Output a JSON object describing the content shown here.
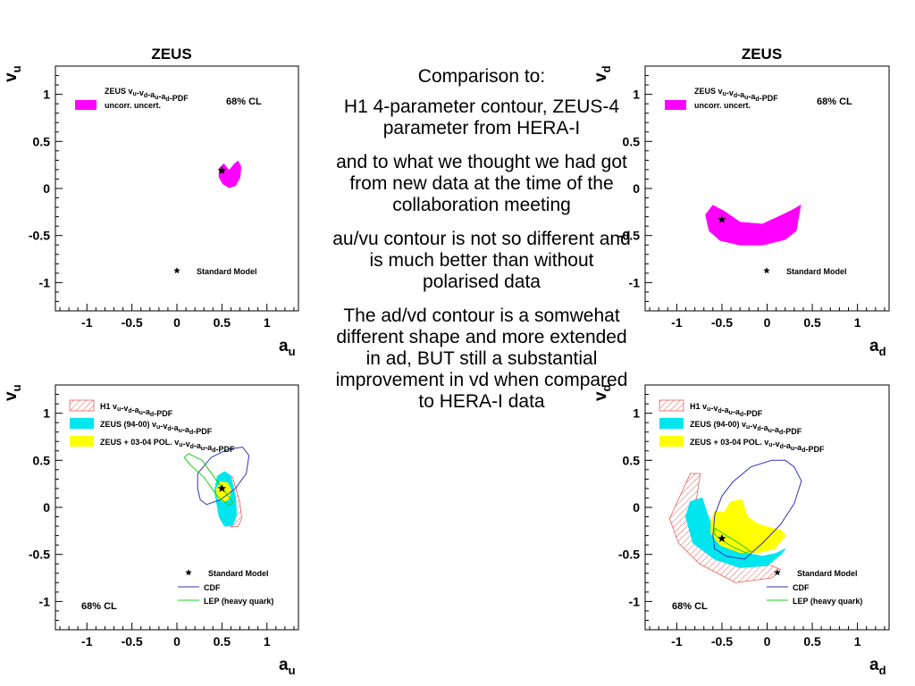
{
  "charts": [
    {
      "title": "ZEUS",
      "xlabel_base": "a",
      "xlabel_sub": "u",
      "ylabel_base": "v",
      "ylabel_sub": "u",
      "xticks": [
        "-1",
        "-0.5",
        "0",
        "0.5",
        "1"
      ],
      "yticks": [
        "1",
        "0.5",
        "0",
        "-0.5",
        "-1"
      ],
      "cl_label": "68% CL",
      "legend": [
        "ZEUS vu-vd-au-ad-PDF",
        "uncorr. uncert."
      ],
      "sm_label": "Standard Model"
    },
    {
      "title": "ZEUS",
      "xlabel_base": "a",
      "xlabel_sub": "d",
      "ylabel_base": "v",
      "ylabel_sub": "d",
      "xticks": [
        "-1",
        "-0.5",
        "0",
        "0.5",
        "1"
      ],
      "yticks": [
        "1",
        "0.5",
        "0",
        "-0.5",
        "-1"
      ],
      "cl_label": "68% CL",
      "legend": [
        "ZEUS vu-vd-au-ad-PDF",
        "uncorr. uncert."
      ],
      "sm_label": "Standard Model"
    },
    {
      "title": "",
      "xlabel_base": "a",
      "xlabel_sub": "u",
      "ylabel_base": "v",
      "ylabel_sub": "u",
      "xticks": [
        "-1",
        "-0.5",
        "0",
        "0.5",
        "1"
      ],
      "yticks": [
        "1",
        "0.5",
        "0",
        "-0.5",
        "-1"
      ],
      "cl_label": "68% CL",
      "legend": [
        "H1 vu-vd-au-ad-PDF",
        "ZEUS (94-00) vu-vd-au-ad-PDF",
        "ZEUS + 03-04 POL. vu-vd-au-ad-PDF"
      ],
      "sm_label": "Standard Model",
      "line_legend": [
        "CDF",
        "LEP (heavy quark)"
      ]
    },
    {
      "title": "",
      "xlabel_base": "a",
      "xlabel_sub": "d",
      "ylabel_base": "v",
      "ylabel_sub": "d",
      "xticks": [
        "-1",
        "-0.5",
        "0",
        "0.5",
        "1"
      ],
      "yticks": [
        "1",
        "0.5",
        "0",
        "-0.5",
        "-1"
      ],
      "cl_label": "68% CL",
      "legend": [
        "H1 vu-vd-au-ad-PDF",
        "ZEUS (94-00) vu-vd-au-ad-PDF",
        "ZEUS + 03-04 POL. vu-vd-au-ad-PDF"
      ],
      "sm_label": "Standard Model",
      "line_legend": [
        "CDF",
        "LEP (heavy quark)"
      ]
    }
  ],
  "chart_data": [
    {
      "type": "scatter",
      "title": "ZEUS",
      "xlim": [
        -1.35,
        1.35
      ],
      "ylim": [
        -1.3,
        1.3
      ],
      "standard_model": [
        0.5,
        0.19
      ],
      "contours": [
        {
          "name": "ZEUS vu-vd-au-ad-PDF uncorr. uncert.",
          "color": "#ff00ff",
          "style": "fill",
          "points": [
            [
              0.47,
              0.21
            ],
            [
              0.52,
              0.26
            ],
            [
              0.58,
              0.19
            ],
            [
              0.64,
              0.26
            ],
            [
              0.68,
              0.29
            ],
            [
              0.71,
              0.23
            ],
            [
              0.7,
              0.12
            ],
            [
              0.65,
              0.03
            ],
            [
              0.58,
              0.01
            ],
            [
              0.51,
              0.05
            ],
            [
              0.47,
              0.12
            ]
          ]
        }
      ]
    },
    {
      "type": "scatter",
      "title": "ZEUS",
      "xlim": [
        -1.35,
        1.35
      ],
      "ylim": [
        -1.3,
        1.3
      ],
      "standard_model": [
        -0.5,
        -0.33
      ],
      "contours": [
        {
          "name": "ZEUS vu-vd-au-ad-PDF uncorr. uncert.",
          "color": "#ff00ff",
          "style": "fill",
          "points": [
            [
              -0.68,
              -0.28
            ],
            [
              -0.6,
              -0.18
            ],
            [
              -0.48,
              -0.24
            ],
            [
              -0.3,
              -0.36
            ],
            [
              -0.05,
              -0.38
            ],
            [
              0.15,
              -0.29
            ],
            [
              0.28,
              -0.23
            ],
            [
              0.37,
              -0.18
            ],
            [
              0.32,
              -0.45
            ],
            [
              0.2,
              -0.54
            ],
            [
              -0.05,
              -0.6
            ],
            [
              -0.3,
              -0.6
            ],
            [
              -0.52,
              -0.55
            ],
            [
              -0.64,
              -0.45
            ]
          ]
        }
      ]
    },
    {
      "type": "scatter",
      "title": "",
      "xlim": [
        -1.35,
        1.35
      ],
      "ylim": [
        -1.3,
        1.3
      ],
      "standard_model": [
        0.5,
        0.2
      ],
      "contours": [
        {
          "name": "H1 vu-vd-au-ad-PDF",
          "color": "#e03030",
          "style": "hatch",
          "points": [
            [
              0.47,
              0.1
            ],
            [
              0.52,
              0.37
            ],
            [
              0.62,
              0.32
            ],
            [
              0.7,
              0.05
            ],
            [
              0.72,
              -0.12
            ],
            [
              0.68,
              -0.2
            ],
            [
              0.6,
              -0.21
            ],
            [
              0.52,
              -0.13
            ]
          ]
        },
        {
          "name": "ZEUS (94-00) vu-vd-au-ad-PDF",
          "color": "#00e5ee",
          "style": "fill",
          "points": [
            [
              0.42,
              0.17
            ],
            [
              0.45,
              0.33
            ],
            [
              0.53,
              0.38
            ],
            [
              0.6,
              0.33
            ],
            [
              0.65,
              0.1
            ],
            [
              0.66,
              -0.08
            ],
            [
              0.62,
              -0.19
            ],
            [
              0.53,
              -0.2
            ],
            [
              0.47,
              -0.1
            ]
          ]
        },
        {
          "name": "ZEUS + 03-04 POL. vu-vd-au-ad-PDF",
          "color": "#ffff00",
          "style": "fill",
          "points": [
            [
              0.44,
              0.2
            ],
            [
              0.48,
              0.27
            ],
            [
              0.56,
              0.26
            ],
            [
              0.6,
              0.19
            ],
            [
              0.58,
              0.09
            ],
            [
              0.52,
              0.06
            ],
            [
              0.45,
              0.1
            ]
          ]
        },
        {
          "name": "CDF",
          "color": "#3333bb",
          "style": "line",
          "points": [
            [
              0.23,
              0.36
            ],
            [
              0.38,
              0.53
            ],
            [
              0.57,
              0.62
            ],
            [
              0.73,
              0.64
            ],
            [
              0.8,
              0.55
            ],
            [
              0.77,
              0.36
            ],
            [
              0.65,
              0.2
            ],
            [
              0.48,
              0.08
            ],
            [
              0.33,
              0.03
            ],
            [
              0.26,
              0.08
            ],
            [
              0.23,
              0.2
            ]
          ]
        },
        {
          "name": "LEP (heavy quark)",
          "color": "#22cc22",
          "style": "line",
          "points": [
            [
              0.08,
              0.53
            ],
            [
              0.13,
              0.57
            ],
            [
              0.28,
              0.5
            ],
            [
              0.43,
              0.3
            ],
            [
              0.57,
              0.12
            ],
            [
              0.62,
              0.05
            ],
            [
              0.58,
              0.02
            ],
            [
              0.45,
              0.12
            ],
            [
              0.3,
              0.32
            ],
            [
              0.15,
              0.45
            ]
          ]
        }
      ]
    },
    {
      "type": "scatter",
      "title": "",
      "xlim": [
        -1.35,
        1.35
      ],
      "ylim": [
        -1.3,
        1.3
      ],
      "standard_model": [
        -0.5,
        -0.33
      ],
      "contours": [
        {
          "name": "H1 vu-vd-au-ad-PDF",
          "color": "#e03030",
          "style": "hatch",
          "points": [
            [
              -1.08,
              -0.12
            ],
            [
              -0.85,
              0.36
            ],
            [
              -0.74,
              0.36
            ],
            [
              -0.78,
              0.1
            ],
            [
              -0.72,
              -0.15
            ],
            [
              -0.55,
              -0.35
            ],
            [
              -0.3,
              -0.54
            ],
            [
              0.05,
              -0.62
            ],
            [
              0.15,
              -0.66
            ],
            [
              0.05,
              -0.75
            ],
            [
              -0.35,
              -0.8
            ],
            [
              -0.75,
              -0.6
            ],
            [
              -0.98,
              -0.38
            ]
          ]
        },
        {
          "name": "ZEUS (94-00) vu-vd-au-ad-PDF",
          "color": "#00e5ee",
          "style": "fill",
          "points": [
            [
              -0.9,
              -0.1
            ],
            [
              -0.85,
              0.06
            ],
            [
              -0.72,
              0.1
            ],
            [
              -0.66,
              -0.08
            ],
            [
              -0.58,
              -0.26
            ],
            [
              -0.45,
              -0.4
            ],
            [
              -0.28,
              -0.48
            ],
            [
              -0.05,
              -0.52
            ],
            [
              0.1,
              -0.49
            ],
            [
              0.2,
              -0.44
            ],
            [
              0.15,
              -0.5
            ],
            [
              0.0,
              -0.62
            ],
            [
              -0.3,
              -0.64
            ],
            [
              -0.58,
              -0.55
            ],
            [
              -0.82,
              -0.38
            ]
          ]
        },
        {
          "name": "ZEUS + 03-04 POL. vu-vd-au-ad-PDF",
          "color": "#ffff00",
          "style": "fill",
          "points": [
            [
              -0.62,
              -0.16
            ],
            [
              -0.58,
              -0.04
            ],
            [
              -0.48,
              -0.06
            ],
            [
              -0.4,
              0.06
            ],
            [
              -0.28,
              0.08
            ],
            [
              -0.22,
              -0.1
            ],
            [
              -0.1,
              -0.18
            ],
            [
              0.05,
              -0.22
            ],
            [
              0.15,
              -0.24
            ],
            [
              0.2,
              -0.3
            ],
            [
              0.08,
              -0.44
            ],
            [
              -0.1,
              -0.48
            ],
            [
              -0.3,
              -0.48
            ],
            [
              -0.52,
              -0.4
            ],
            [
              -0.62,
              -0.28
            ]
          ]
        },
        {
          "name": "CDF",
          "color": "#3333bb",
          "style": "line",
          "points": [
            [
              -0.6,
              -0.3
            ],
            [
              -0.58,
              -0.08
            ],
            [
              -0.5,
              0.12
            ],
            [
              -0.38,
              0.27
            ],
            [
              -0.18,
              0.43
            ],
            [
              0.05,
              0.5
            ],
            [
              0.2,
              0.5
            ],
            [
              0.3,
              0.43
            ],
            [
              0.38,
              0.28
            ],
            [
              0.3,
              0.04
            ],
            [
              0.15,
              -0.18
            ],
            [
              -0.05,
              -0.38
            ],
            [
              -0.25,
              -0.55
            ],
            [
              -0.45,
              -0.52
            ],
            [
              -0.58,
              -0.44
            ]
          ]
        },
        {
          "name": "LEP (heavy quark)",
          "color": "#22cc22",
          "style": "line",
          "points": [
            [
              -0.58,
              -0.22
            ],
            [
              -0.5,
              -0.27
            ],
            [
              -0.38,
              -0.34
            ],
            [
              -0.25,
              -0.42
            ],
            [
              -0.18,
              -0.47
            ],
            [
              -0.24,
              -0.48
            ],
            [
              -0.38,
              -0.42
            ],
            [
              -0.5,
              -0.35
            ],
            [
              -0.58,
              -0.29
            ]
          ]
        }
      ]
    }
  ],
  "notes": [
    "Comparison to:",
    "H1 4-parameter contour, ZEUS-4 parameter from HERA-I",
    "and to what we thought we had got from new data at the time of the collaboration meeting",
    "au/vu contour is not so different and is much better than without polarised data",
    "The ad/vd contour is a somwehat different shape and more extended in ad, BUT still a substantial improvement in vd when compared to HERA-I data"
  ]
}
